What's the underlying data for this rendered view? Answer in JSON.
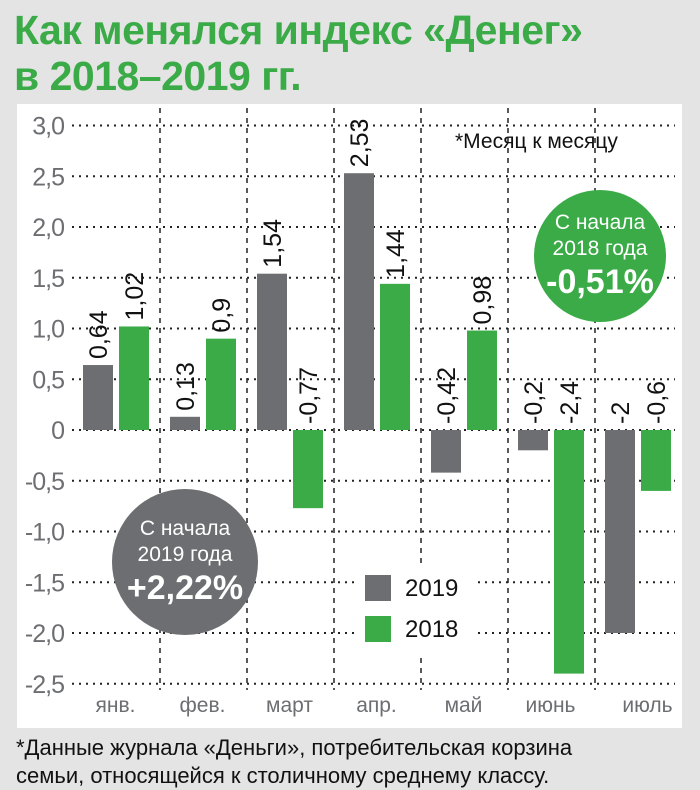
{
  "title_lines": [
    "Как менялся индекс «Денег»",
    "в 2018–2019 гг."
  ],
  "colors": {
    "y2019": "#6d6e71",
    "y2018": "#3aab47",
    "title": "#3aab47"
  },
  "note": "*Месяц к месяцу",
  "badge_2018": {
    "line1": "С начала",
    "line2": "2018 года",
    "value": "-0,51%"
  },
  "badge_2019": {
    "line1": "С начала",
    "line2": "2019 года",
    "value": "+2,22%"
  },
  "legend": [
    "2019",
    "2018"
  ],
  "footnote": [
    "*Данные журнала «Деньги», потребительская корзина",
    "семьи, относящейся к столичному среднему классу."
  ],
  "chart_data": {
    "type": "bar",
    "title": "Как менялся индекс «Денег» в 2018–2019 гг.",
    "categories": [
      "янв.",
      "фев.",
      "март",
      "апр.",
      "май",
      "июнь",
      "июль"
    ],
    "series": [
      {
        "name": "2019",
        "values": [
          0.64,
          0.13,
          1.54,
          2.53,
          -0.42,
          -0.2,
          -2
        ],
        "labels": [
          "0,64",
          "0,13",
          "1,54",
          "2,53",
          "-0,42",
          "-0,2",
          "-2"
        ]
      },
      {
        "name": "2018",
        "values": [
          1.02,
          0.9,
          -0.77,
          1.44,
          0.98,
          -2.4,
          -0.6
        ],
        "labels": [
          "1,02",
          "0,9",
          "-0,77",
          "1,44",
          "0,98",
          "-2,4",
          "-0,6"
        ]
      }
    ],
    "yticks": [
      "3,0",
      "2,5",
      "2,0",
      "1,5",
      "1,0",
      "0,5",
      "0",
      "-0,5",
      "-1,0",
      "-1,5",
      "-2,0",
      "-2,5"
    ],
    "ylim": [
      -2.5,
      3.0
    ],
    "grid": true,
    "legend_position": "bottom-center"
  }
}
